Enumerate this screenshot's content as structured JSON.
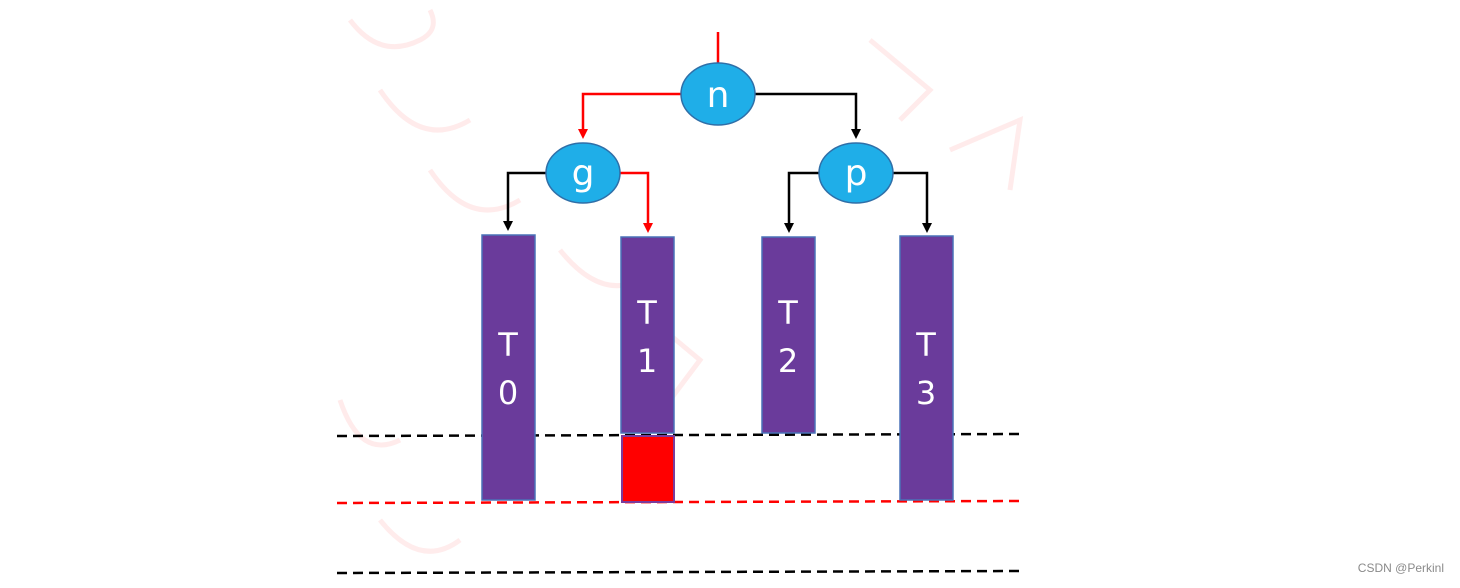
{
  "nodes": {
    "n": "n",
    "g": "g",
    "p": "p"
  },
  "subtrees": {
    "t0": [
      "T",
      "0"
    ],
    "t1": [
      "T",
      "1"
    ],
    "t2": [
      "T",
      "2"
    ],
    "t3": [
      "T",
      "3"
    ]
  },
  "colors": {
    "node_fill": "#1faee8",
    "node_stroke": "#2f6fa8",
    "bar_fill": "#6a3b9b",
    "bar_stroke": "#4a72b8",
    "highlight_edge": "#ff0000",
    "normal_edge": "#000000",
    "extra_block": "#ff0000",
    "dashed_black": "#000000",
    "dashed_red": "#ff0000"
  },
  "footer": {
    "credit": "CSDN @Perkinl"
  }
}
